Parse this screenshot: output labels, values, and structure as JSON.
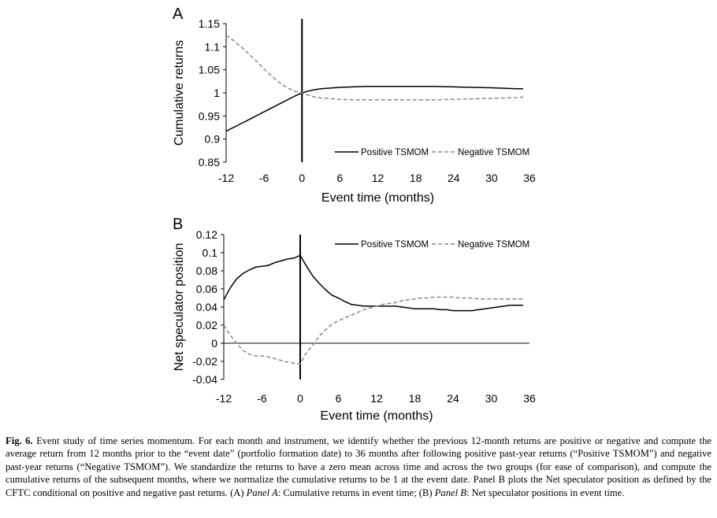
{
  "chart_data": [
    {
      "type": "line",
      "panel_letter": "A",
      "xlabel": "Event time (months)",
      "ylabel": "Cumulative returns",
      "xlim": [
        -12,
        36
      ],
      "ylim": [
        0.85,
        1.15
      ],
      "xticks": [
        "-12",
        "-6",
        "0",
        "6",
        "12",
        "18",
        "24",
        "30",
        "36"
      ],
      "yticks": [
        "0.85",
        "0.9",
        "0.95",
        "1",
        "1.05",
        "1.1",
        "1.15"
      ],
      "legend_position": "lower-right",
      "series": [
        {
          "name": "Positive TSMOM",
          "style": "solid",
          "color": "#000000",
          "x": [
            -12,
            -11,
            -10,
            -9,
            -8,
            -7,
            -6,
            -5,
            -4,
            -3,
            -2,
            -1,
            0,
            1,
            2,
            3,
            4,
            6,
            8,
            10,
            12,
            15,
            18,
            21,
            24,
            27,
            30,
            32,
            34,
            35
          ],
          "y": [
            0.917,
            0.924,
            0.931,
            0.938,
            0.945,
            0.952,
            0.959,
            0.966,
            0.973,
            0.98,
            0.987,
            0.994,
            1.0,
            1.004,
            1.007,
            1.009,
            1.01,
            1.012,
            1.013,
            1.014,
            1.014,
            1.014,
            1.014,
            1.014,
            1.013,
            1.012,
            1.011,
            1.01,
            1.009,
            1.009
          ]
        },
        {
          "name": "Negative TSMOM",
          "style": "dashed",
          "color": "#888888",
          "x": [
            -12,
            -11,
            -10,
            -9,
            -8,
            -7,
            -6,
            -5,
            -4,
            -3,
            -2,
            -1,
            0,
            1,
            2,
            3,
            4,
            6,
            8,
            10,
            12,
            15,
            18,
            21,
            24,
            27,
            30,
            32,
            34,
            35
          ],
          "y": [
            1.125,
            1.115,
            1.104,
            1.092,
            1.079,
            1.066,
            1.052,
            1.039,
            1.027,
            1.017,
            1.009,
            1.003,
            1.0,
            0.995,
            0.991,
            0.989,
            0.988,
            0.986,
            0.985,
            0.985,
            0.985,
            0.985,
            0.985,
            0.985,
            0.986,
            0.987,
            0.988,
            0.989,
            0.99,
            0.991
          ]
        }
      ]
    },
    {
      "type": "line",
      "panel_letter": "B",
      "xlabel": "Event time (months)",
      "ylabel": "Net speculator position",
      "xlim": [
        -12,
        36
      ],
      "ylim": [
        -0.04,
        0.12
      ],
      "xticks": [
        "-12",
        "-6",
        "0",
        "6",
        "12",
        "18",
        "24",
        "30",
        "36"
      ],
      "yticks": [
        "-0.04",
        "-0.02",
        "0",
        "0.02",
        "0.04",
        "0.06",
        "0.08",
        "0.1",
        "0.12"
      ],
      "legend_position": "top-right",
      "series": [
        {
          "name": "Positive TSMOM",
          "style": "solid",
          "color": "#000000",
          "x": [
            -12,
            -11,
            -10,
            -9,
            -8,
            -7,
            -6,
            -5,
            -4,
            -3,
            -2,
            -1,
            0,
            1,
            2,
            3,
            4,
            5,
            6,
            7,
            8,
            9,
            10,
            11,
            12,
            13,
            14,
            15,
            16,
            17,
            18,
            19,
            20,
            21,
            22,
            23,
            24,
            25,
            26,
            27,
            28,
            29,
            30,
            31,
            32,
            33,
            34,
            35
          ],
          "y": [
            0.048,
            0.061,
            0.071,
            0.077,
            0.081,
            0.084,
            0.085,
            0.086,
            0.089,
            0.091,
            0.093,
            0.094,
            0.097,
            0.085,
            0.074,
            0.066,
            0.059,
            0.053,
            0.05,
            0.046,
            0.043,
            0.042,
            0.041,
            0.041,
            0.041,
            0.041,
            0.041,
            0.041,
            0.04,
            0.039,
            0.038,
            0.038,
            0.038,
            0.038,
            0.037,
            0.037,
            0.036,
            0.036,
            0.036,
            0.036,
            0.037,
            0.038,
            0.039,
            0.04,
            0.041,
            0.042,
            0.042,
            0.042
          ]
        },
        {
          "name": "Negative TSMOM",
          "style": "dashed",
          "color": "#888888",
          "x": [
            -12,
            -11,
            -10,
            -9,
            -8,
            -7,
            -6,
            -5,
            -4,
            -3,
            -2,
            -1,
            0,
            1,
            2,
            3,
            4,
            5,
            6,
            7,
            8,
            9,
            10,
            11,
            12,
            13,
            14,
            15,
            16,
            17,
            18,
            19,
            20,
            21,
            22,
            23,
            24,
            25,
            26,
            27,
            28,
            29,
            30,
            31,
            32,
            33,
            34,
            35
          ],
          "y": [
            0.02,
            0.009,
            0.0,
            -0.008,
            -0.012,
            -0.014,
            -0.014,
            -0.015,
            -0.017,
            -0.019,
            -0.021,
            -0.022,
            -0.023,
            -0.01,
            -0.002,
            0.008,
            0.015,
            0.021,
            0.025,
            0.028,
            0.031,
            0.034,
            0.037,
            0.039,
            0.041,
            0.043,
            0.044,
            0.045,
            0.047,
            0.048,
            0.049,
            0.05,
            0.05,
            0.051,
            0.051,
            0.051,
            0.051,
            0.05,
            0.05,
            0.05,
            0.049,
            0.049,
            0.049,
            0.049,
            0.049,
            0.049,
            0.049,
            0.049
          ]
        }
      ]
    }
  ],
  "caption": {
    "label": "Fig. 6.",
    "text": " Event study of time series momentum. For each month and instrument, we identify whether the previous 12-month returns are positive or negative and compute the average return from 12 months prior to the “event date” (portfolio formation date) to 36 months after following positive past-year returns (“Positive TSMOM”) and negative past-year returns (“Negative TSMOM”). We standardize the returns to have a zero mean across time and across the two groups (for ease of comparison), and compute the cumulative returns of the subsequent months, where we normalize the cumulative returns to be 1 at the event date. Panel B plots the Net speculator position as defined by the CFTC conditional on positive and negative past returns. (A) ",
    "panel_a_label": "Panel A",
    "panel_a_text": ": Cumulative returns in event time; (B) ",
    "panel_b_label": "Panel B",
    "panel_b_text": ": Net speculator positions in event time."
  }
}
